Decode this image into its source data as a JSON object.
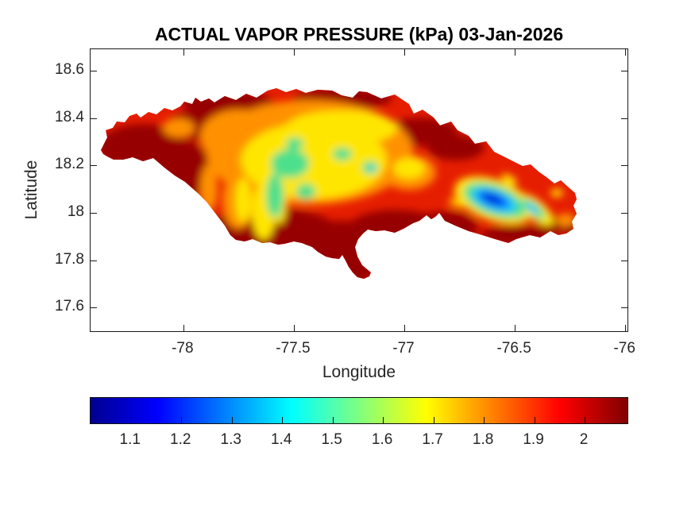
{
  "chart_data": {
    "type": "heatmap",
    "title": "ACTUAL VAPOR PRESSURE (kPa) 03-Jan-2026",
    "xlabel": "Longitude",
    "ylabel": "Latitude",
    "region": "Jamaica",
    "units": "kPa",
    "grid": false,
    "xlim": [
      -78.42,
      -75.99
    ],
    "ylim": [
      17.5,
      18.69
    ],
    "x_ticks": {
      "values": [
        -78,
        -77.5,
        -77,
        -76.5,
        -76
      ],
      "labels": [
        "-78",
        "-77.5",
        "-77",
        "-76.5",
        "-76"
      ]
    },
    "y_ticks": {
      "values": [
        18.6,
        18.4,
        18.2,
        18,
        17.8,
        17.6
      ],
      "labels": [
        "18.6",
        "18.4",
        "18.2",
        "18",
        "17.8",
        "17.6"
      ]
    },
    "colorbar": {
      "orientation": "horizontal",
      "colormap": "jet",
      "range": [
        1.02,
        2.085
      ],
      "tick_values": [
        1.1,
        1.2,
        1.3,
        1.4,
        1.5,
        1.6,
        1.7,
        1.8,
        1.9,
        2
      ],
      "tick_labels": [
        "1.1",
        "1.2",
        "1.3",
        "1.4",
        "1.5",
        "1.6",
        "1.7",
        "1.8",
        "1.9",
        "2"
      ],
      "gradient": [
        {
          "p": 0,
          "c": "#00008f"
        },
        {
          "p": 12.5,
          "c": "#0000ff"
        },
        {
          "p": 25,
          "c": "#0080ff"
        },
        {
          "p": 37.5,
          "c": "#00ffff"
        },
        {
          "p": 50,
          "c": "#80ff80"
        },
        {
          "p": 62.5,
          "c": "#ffff00"
        },
        {
          "p": 75,
          "c": "#ff8000"
        },
        {
          "p": 87.5,
          "c": "#ff0000"
        },
        {
          "p": 100,
          "c": "#800000"
        }
      ]
    },
    "value_summary": {
      "coastal_lowlands_kPa": 2.05,
      "western_interior_kPa": 1.55,
      "cockpit_country_patches_kPa": 1.45,
      "blue_mountains_min_kPa": 1.05,
      "blue_mountains_min_location": {
        "lon": -76.6,
        "lat": 18.06
      }
    },
    "palette": {
      "dark_red": "#970000",
      "red": "#e61e00",
      "orange": "#ff9100",
      "yellow": "#ffe600",
      "green": "#4de08c",
      "cyan": "#1fc8ff",
      "blue": "#0064ff",
      "dark_blue": "#0028d2"
    }
  }
}
